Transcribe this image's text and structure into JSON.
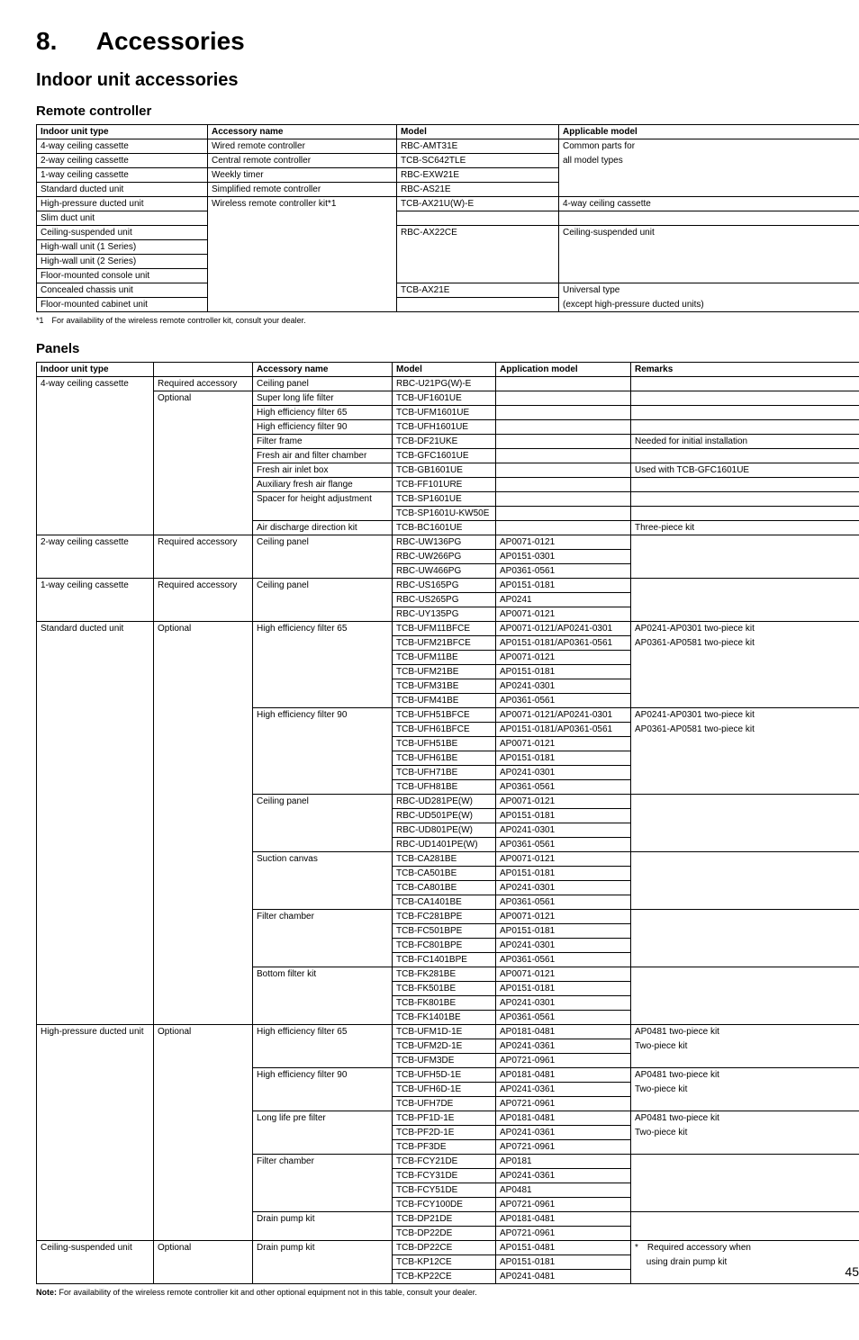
{
  "page_number": "45",
  "heading": {
    "num": "8.",
    "title": "Accessories"
  },
  "sub1": "Indoor unit accessories",
  "sub2a": "Remote controller",
  "sub2b": "Panels",
  "table1": {
    "headers": [
      "Indoor unit type",
      "Accessory name",
      "Model",
      "Applicable model"
    ],
    "rows": [
      {
        "c1": "4-way ceiling cassette",
        "c2": "Wired remote controller",
        "c3": "RBC-AMT31E",
        "c4": "Common parts for"
      },
      {
        "c1": "2-way ceiling cassette",
        "c2": "Central remote controller",
        "c3": "TCB-SC642TLE",
        "c4": "all model types"
      },
      {
        "c1": "1-way ceiling cassette",
        "c2": "Weekly timer",
        "c3": "RBC-EXW21E",
        "c4": ""
      },
      {
        "c1": "Standard ducted unit",
        "c2": "Simplified remote controller",
        "c3": "RBC-AS21E",
        "c4": ""
      },
      {
        "c1": "High-pressure ducted unit",
        "c2": "Wireless remote controller kit*1",
        "c3": "TCB-AX21U(W)-E",
        "c4": "4-way ceiling cassette"
      },
      {
        "c1": "Slim duct unit",
        "c2": "",
        "c3": "",
        "c4": ""
      },
      {
        "c1": "Ceiling-suspended unit",
        "c2": "",
        "c3": "RBC-AX22CE",
        "c4": "Ceiling-suspended unit"
      },
      {
        "c1": "High-wall unit (1 Series)",
        "c2": "",
        "c3": "",
        "c4": ""
      },
      {
        "c1": "High-wall unit (2 Series)",
        "c2": "",
        "c3": "",
        "c4": ""
      },
      {
        "c1": "Floor-mounted console unit",
        "c2": "",
        "c3": "",
        "c4": ""
      },
      {
        "c1": "Concealed chassis unit",
        "c2": "",
        "c3": "TCB-AX21E",
        "c4": "Universal type"
      },
      {
        "c1": "Floor-mounted cabinet unit",
        "c2": "",
        "c3": "",
        "c4": "(except high-pressure ducted units)"
      }
    ],
    "footnote": "*1 For availability of the wireless remote controller kit, consult your dealer."
  },
  "table2": {
    "headers": [
      "Indoor unit type",
      "",
      "Accessory name",
      "Model",
      "Application model",
      "Remarks"
    ],
    "g4way_req": {
      "unit": "4-way ceiling cassette",
      "opt": "Required accessory",
      "acc": "Ceiling panel",
      "model": "RBC-U21PG(W)-E"
    },
    "g4way_opt_unit": "Optional",
    "g4way_opt": [
      {
        "acc": "Super long life filter",
        "model": "TCB-UF1601UE",
        "rem": ""
      },
      {
        "acc": "High efficiency filter 65",
        "model": "TCB-UFM1601UE",
        "rem": ""
      },
      {
        "acc": "High efficiency filter 90",
        "model": "TCB-UFH1601UE",
        "rem": ""
      },
      {
        "acc": "Filter frame",
        "model": "TCB-DF21UKE",
        "rem": "Needed for initial installation"
      },
      {
        "acc": "Fresh air and filter chamber",
        "model": "TCB-GFC1601UE",
        "rem": ""
      },
      {
        "acc": "Fresh air inlet box",
        "model": "TCB-GB1601UE",
        "rem": "Used with TCB-GFC1601UE"
      },
      {
        "acc": "Auxiliary fresh air flange",
        "model": "TCB-FF101URE",
        "rem": ""
      },
      {
        "acc": "Spacer for height adjustment",
        "model": "TCB-SP1601UE",
        "rem": ""
      },
      {
        "acc": "",
        "model": "TCB-SP1601U-KW50E",
        "rem": ""
      },
      {
        "acc": "Air discharge direction kit",
        "model": "TCB-BC1601UE",
        "rem": "Three-piece kit"
      }
    ],
    "g2way": {
      "unit": "2-way ceiling cassette",
      "opt": "Required accessory",
      "acc": "Ceiling panel",
      "rows": [
        {
          "model": "RBC-UW136PG",
          "app": "AP0071-0121"
        },
        {
          "model": "RBC-UW266PG",
          "app": "AP0151-0301"
        },
        {
          "model": "RBC-UW466PG",
          "app": "AP0361-0561"
        }
      ]
    },
    "g1way": {
      "unit": "1-way ceiling cassette",
      "opt": "Required accessory",
      "acc": "Ceiling panel",
      "rows": [
        {
          "model": "RBC-US165PG",
          "app": "AP0151-0181"
        },
        {
          "model": "RBC-US265PG",
          "app": "AP0241"
        },
        {
          "model": "RBC-UY135PG",
          "app": "AP0071-0121"
        }
      ]
    },
    "gstd": {
      "unit": "Standard ducted unit",
      "opt": "Optional",
      "groups": [
        {
          "acc": "High efficiency filter 65",
          "rows": [
            {
              "model": "TCB-UFM11BFCE",
              "app": "AP0071-0121/AP0241-0301",
              "rem": "AP0241-AP0301 two-piece kit"
            },
            {
              "model": "TCB-UFM21BFCE",
              "app": "AP0151-0181/AP0361-0561",
              "rem": "AP0361-AP0581 two-piece kit"
            },
            {
              "model": "TCB-UFM11BE",
              "app": "AP0071-0121",
              "rem": ""
            },
            {
              "model": "TCB-UFM21BE",
              "app": "AP0151-0181",
              "rem": ""
            },
            {
              "model": "TCB-UFM31BE",
              "app": "AP0241-0301",
              "rem": ""
            },
            {
              "model": "TCB-UFM41BE",
              "app": "AP0361-0561",
              "rem": ""
            }
          ]
        },
        {
          "acc": "High efficiency filter 90",
          "rows": [
            {
              "model": "TCB-UFH51BFCE",
              "app": "AP0071-0121/AP0241-0301",
              "rem": "AP0241-AP0301 two-piece kit"
            },
            {
              "model": "TCB-UFH61BFCE",
              "app": "AP0151-0181/AP0361-0561",
              "rem": "AP0361-AP0581 two-piece kit"
            },
            {
              "model": "TCB-UFH51BE",
              "app": "AP0071-0121",
              "rem": ""
            },
            {
              "model": "TCB-UFH61BE",
              "app": "AP0151-0181",
              "rem": ""
            },
            {
              "model": "TCB-UFH71BE",
              "app": "AP0241-0301",
              "rem": ""
            },
            {
              "model": "TCB-UFH81BE",
              "app": "AP0361-0561",
              "rem": ""
            }
          ]
        },
        {
          "acc": "Ceiling panel",
          "rows": [
            {
              "model": "RBC-UD281PE(W)",
              "app": "AP0071-0121",
              "rem": ""
            },
            {
              "model": "RBC-UD501PE(W)",
              "app": "AP0151-0181",
              "rem": ""
            },
            {
              "model": "RBC-UD801PE(W)",
              "app": "AP0241-0301",
              "rem": ""
            },
            {
              "model": "RBC-UD1401PE(W)",
              "app": "AP0361-0561",
              "rem": ""
            }
          ]
        },
        {
          "acc": "Suction canvas",
          "rows": [
            {
              "model": "TCB-CA281BE",
              "app": "AP0071-0121",
              "rem": ""
            },
            {
              "model": "TCB-CA501BE",
              "app": "AP0151-0181",
              "rem": ""
            },
            {
              "model": "TCB-CA801BE",
              "app": "AP0241-0301",
              "rem": ""
            },
            {
              "model": "TCB-CA1401BE",
              "app": "AP0361-0561",
              "rem": ""
            }
          ]
        },
        {
          "acc": "Filter chamber",
          "rows": [
            {
              "model": "TCB-FC281BPE",
              "app": "AP0071-0121",
              "rem": ""
            },
            {
              "model": "TCB-FC501BPE",
              "app": "AP0151-0181",
              "rem": ""
            },
            {
              "model": "TCB-FC801BPE",
              "app": "AP0241-0301",
              "rem": ""
            },
            {
              "model": "TCB-FC1401BPE",
              "app": "AP0361-0561",
              "rem": ""
            }
          ]
        },
        {
          "acc": "Bottom filter kit",
          "rows": [
            {
              "model": "TCB-FK281BE",
              "app": "AP0071-0121",
              "rem": ""
            },
            {
              "model": "TCB-FK501BE",
              "app": "AP0151-0181",
              "rem": ""
            },
            {
              "model": "TCB-FK801BE",
              "app": "AP0241-0301",
              "rem": ""
            },
            {
              "model": "TCB-FK1401BE",
              "app": "AP0361-0561",
              "rem": ""
            }
          ]
        }
      ]
    },
    "ghp": {
      "unit": "High-pressure ducted unit",
      "opt": "Optional",
      "groups": [
        {
          "acc": "High efficiency filter 65",
          "rows": [
            {
              "model": "TCB-UFM1D-1E",
              "app": "AP0181-0481",
              "rem": "AP0481 two-piece kit"
            },
            {
              "model": "TCB-UFM2D-1E",
              "app": "AP0241-0361",
              "rem": "Two-piece kit"
            },
            {
              "model": "TCB-UFM3DE",
              "app": "AP0721-0961",
              "rem": ""
            }
          ]
        },
        {
          "acc": "High efficiency filter 90",
          "rows": [
            {
              "model": "TCB-UFH5D-1E",
              "app": "AP0181-0481",
              "rem": "AP0481 two-piece kit"
            },
            {
              "model": "TCB-UFH6D-1E",
              "app": "AP0241-0361",
              "rem": "Two-piece kit"
            },
            {
              "model": "TCB-UFH7DE",
              "app": "AP0721-0961",
              "rem": ""
            }
          ]
        },
        {
          "acc": "Long life pre filter",
          "rows": [
            {
              "model": "TCB-PF1D-1E",
              "app": "AP0181-0481",
              "rem": "AP0481 two-piece kit"
            },
            {
              "model": "TCB-PF2D-1E",
              "app": "AP0241-0361",
              "rem": "Two-piece kit"
            },
            {
              "model": "TCB-PF3DE",
              "app": "AP0721-0961",
              "rem": ""
            }
          ]
        },
        {
          "acc": "Filter chamber",
          "rows": [
            {
              "model": "TCB-FCY21DE",
              "app": "AP0181",
              "rem": ""
            },
            {
              "model": "TCB-FCY31DE",
              "app": "AP0241-0361",
              "rem": ""
            },
            {
              "model": "TCB-FCY51DE",
              "app": "AP0481",
              "rem": ""
            },
            {
              "model": "TCB-FCY100DE",
              "app": "AP0721-0961",
              "rem": ""
            }
          ]
        },
        {
          "acc": "Drain pump kit",
          "rows": [
            {
              "model": "TCB-DP21DE",
              "app": "AP0181-0481",
              "rem": ""
            },
            {
              "model": "TCB-DP22DE",
              "app": "AP0721-0961",
              "rem": ""
            }
          ]
        }
      ]
    },
    "gceil": {
      "unit": "Ceiling-suspended unit",
      "opt": "Optional",
      "acc": "Drain pump kit",
      "rows": [
        {
          "model": "TCB-DP22CE",
          "app": "AP0151-0481",
          "rem": "* Required accessory when"
        },
        {
          "model": "TCB-KP12CE",
          "app": "AP0151-0181",
          "rem": "  using drain pump kit"
        },
        {
          "model": "TCB-KP22CE",
          "app": "AP0241-0481",
          "rem": ""
        }
      ]
    },
    "footnote": "Note: For availability of the wireless remote controller kit and other optional equipment not in this table, consult your dealer."
  }
}
